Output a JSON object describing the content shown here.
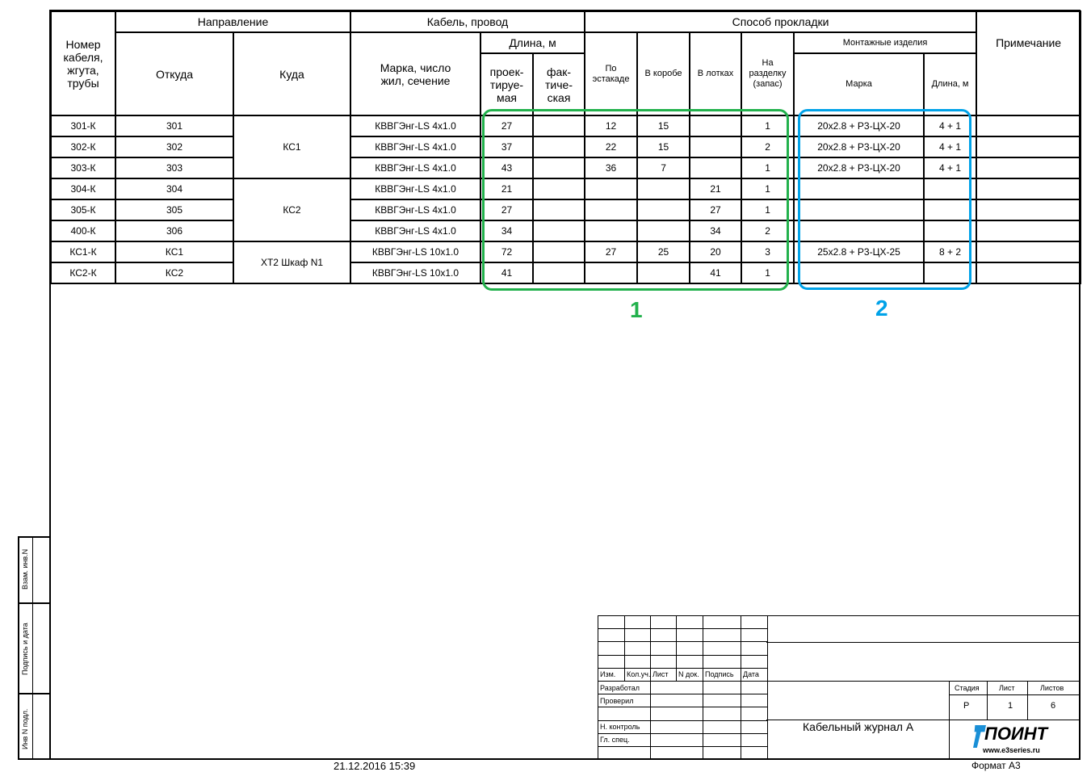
{
  "header": {
    "cable_no": "Номер кабеля, жгута, трубы",
    "direction": "Направление",
    "from": "Откуда",
    "to": "Куда",
    "cable": "Кабель, провод",
    "brand": "Марка, число жил, сечение",
    "length": "Длина, м",
    "design": "проек- тируе- мая",
    "actual": "фак- тиче- ская",
    "laying": "Способ прокладки",
    "trestle": "По эстакаде",
    "box": "В коробе",
    "trays": "В лотках",
    "cutting": "На разделку (запас)",
    "mounting": "Монтажные изделия",
    "m_brand": "Марка",
    "m_length": "Длина, м",
    "note": "Примечание"
  },
  "groups": [
    "КС1",
    "КС2",
    "ХТ2 Шкаф N1"
  ],
  "rows": [
    {
      "no": "301-К",
      "from": "301",
      "brand": "КВВГЭнг-LS 4x1.0",
      "design": "27",
      "actual": "",
      "trestle": "12",
      "box": "15",
      "trays": "",
      "cut": "1",
      "m_brand": "20x2.8 + Р3-ЦХ-20",
      "m_len": "4 + 1",
      "note": ""
    },
    {
      "no": "302-К",
      "from": "302",
      "brand": "КВВГЭнг-LS 4x1.0",
      "design": "37",
      "actual": "",
      "trestle": "22",
      "box": "15",
      "trays": "",
      "cut": "2",
      "m_brand": "20x2.8 + Р3-ЦХ-20",
      "m_len": "4 + 1",
      "note": ""
    },
    {
      "no": "303-К",
      "from": "303",
      "brand": "КВВГЭнг-LS 4x1.0",
      "design": "43",
      "actual": "",
      "trestle": "36",
      "box": "7",
      "trays": "",
      "cut": "1",
      "m_brand": "20x2.8 + Р3-ЦХ-20",
      "m_len": "4 + 1",
      "note": ""
    },
    {
      "no": "304-К",
      "from": "304",
      "brand": "КВВГЭнг-LS 4x1.0",
      "design": "21",
      "actual": "",
      "trestle": "",
      "box": "",
      "trays": "21",
      "cut": "1",
      "m_brand": "",
      "m_len": "",
      "note": ""
    },
    {
      "no": "305-К",
      "from": "305",
      "brand": "КВВГЭнг-LS 4x1.0",
      "design": "27",
      "actual": "",
      "trestle": "",
      "box": "",
      "trays": "27",
      "cut": "1",
      "m_brand": "",
      "m_len": "",
      "note": ""
    },
    {
      "no": "400-К",
      "from": "306",
      "brand": "КВВГЭнг-LS 4x1.0",
      "design": "34",
      "actual": "",
      "trestle": "",
      "box": "",
      "trays": "34",
      "cut": "2",
      "m_brand": "",
      "m_len": "",
      "note": ""
    },
    {
      "no": "КС1-К",
      "from": "КС1",
      "brand": "КВВГЭнг-LS 10x1.0",
      "design": "72",
      "actual": "",
      "trestle": "27",
      "box": "25",
      "trays": "20",
      "cut": "3",
      "m_brand": "25x2.8 + Р3-ЦХ-25",
      "m_len": "8 + 2",
      "note": ""
    },
    {
      "no": "КС2-К",
      "from": "КС2",
      "brand": "КВВГЭнг-LS 10x1.0",
      "design": "41",
      "actual": "",
      "trestle": "",
      "box": "",
      "trays": "41",
      "cut": "1",
      "m_brand": "",
      "m_len": "",
      "note": ""
    }
  ],
  "highlights": [
    {
      "label": "1",
      "color": "#22b14c"
    },
    {
      "label": "2",
      "color": "#00a2e8"
    }
  ],
  "side": {
    "a": "Взам. инв.N",
    "b": "Подпись и дата",
    "c": "Инв N подл."
  },
  "title_block": {
    "izm": "Изм.",
    "kol": "Кол.уч.",
    "list": "Лист",
    "ndoc": "N док.",
    "sign": "Подпись",
    "date": "Дата",
    "dev": "Разработал",
    "chk": "Проверил",
    "nk": "Н. контроль",
    "gl": "Гл. спец.",
    "stage_h": "Стадия",
    "sheet_h": "Лист",
    "sheets_h": "Листов",
    "stage": "Р",
    "sheet": "1",
    "sheets": "6",
    "title": "Кабельный журнал А",
    "logo": "ПОИНТ",
    "site": "www.e3series.ru",
    "format": "Формат А3"
  },
  "timestamp": "21.12.2016 15:39"
}
